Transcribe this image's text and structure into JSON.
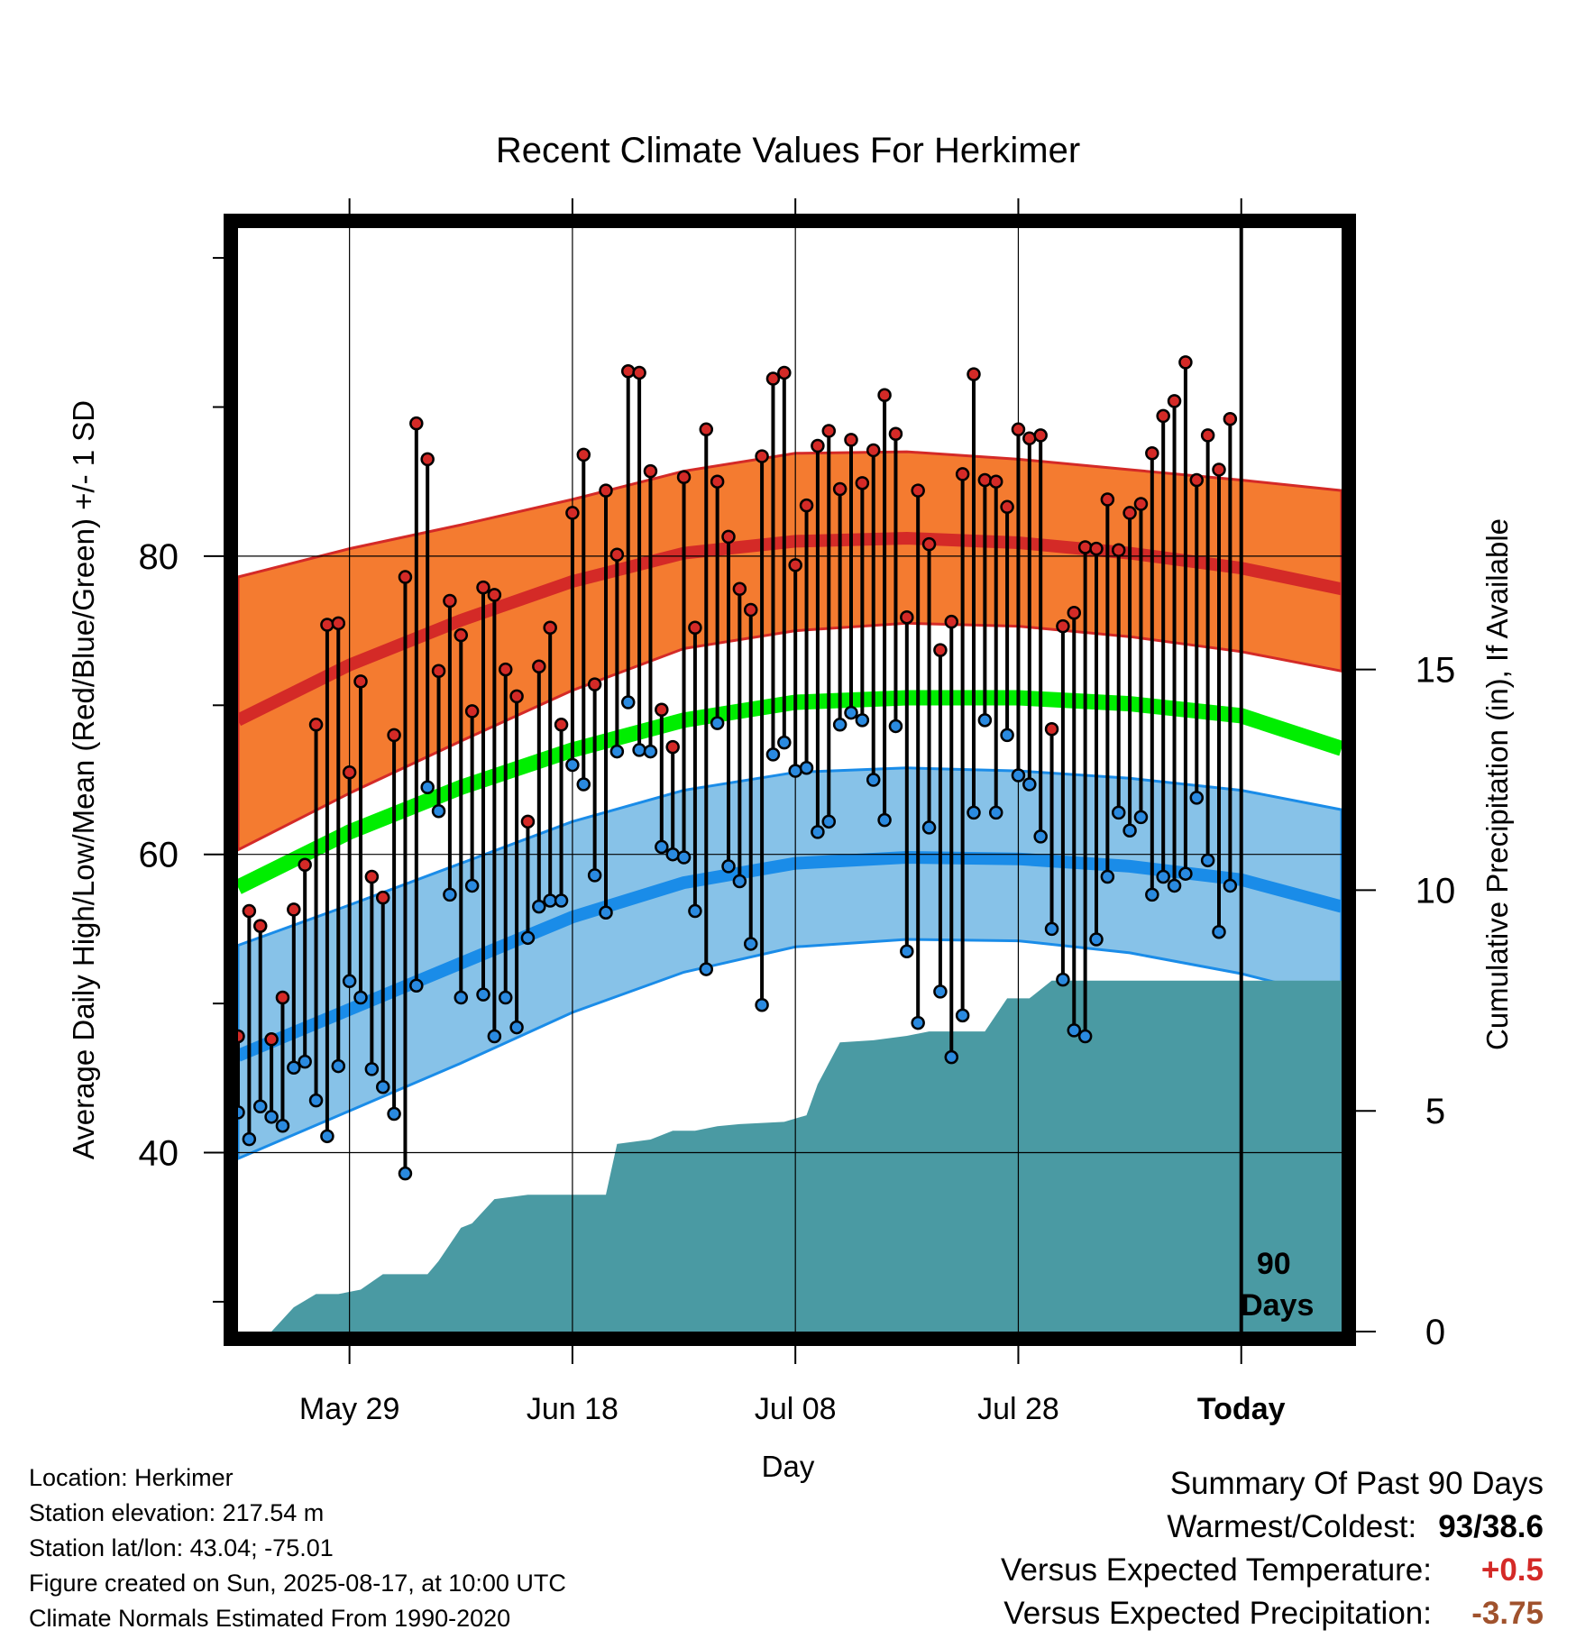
{
  "chart_data": {
    "type": "line",
    "title": "Recent Climate Values For Herkimer",
    "xlabel": "Day",
    "ylabel": "Average Daily High/Low/Mean (Red/Blue/Green) +/- 1 SD",
    "y2label": "Cumulative Precipitation (in), If Available",
    "ylim": [
      28,
      102
    ],
    "y2lim": [
      0,
      25
    ],
    "yticks": [
      40,
      60,
      80
    ],
    "y2ticks": [
      0,
      5,
      10,
      15
    ],
    "x_tick_labels": [
      "May 29",
      "Jun 18",
      "Jul 08",
      "Jul 28",
      "Today"
    ],
    "x_dates": [
      "2025-05-29",
      "2025-06-18",
      "2025-07-08",
      "2025-07-28",
      "2025-08-17"
    ],
    "x_range": [
      "2025-05-19",
      "2025-08-26"
    ],
    "window_marker": {
      "date": "2025-08-17",
      "label_line1": "90",
      "label_line2": "Days"
    },
    "grid": true,
    "colors": {
      "high_band": "#f47b30",
      "high_mean": "#d42a27",
      "low_band": "#87c2e8",
      "low_mean": "#1a8ce8",
      "mean": "#00ee00",
      "precip": "#4a9aa3",
      "high_dot": "#d42a27",
      "low_dot": "#2a8ae0"
    },
    "normals": {
      "dates": [
        "2025-05-19",
        "2025-05-29",
        "2025-06-08",
        "2025-06-18",
        "2025-06-28",
        "2025-07-08",
        "2025-07-18",
        "2025-07-28",
        "2025-08-07",
        "2025-08-17",
        "2025-08-26"
      ],
      "high_mean": [
        69.0,
        72.7,
        75.7,
        78.3,
        80.2,
        81.0,
        81.2,
        80.9,
        80.2,
        79.2,
        77.8
      ],
      "high_upper": [
        78.6,
        80.5,
        82.1,
        83.8,
        85.7,
        86.9,
        87.0,
        86.5,
        85.8,
        85.1,
        84.4
      ],
      "high_lower": [
        60.3,
        64.1,
        67.6,
        71.0,
        73.8,
        75.0,
        75.5,
        75.3,
        74.6,
        73.6,
        72.3
      ],
      "low_mean": [
        46.5,
        49.6,
        52.7,
        55.8,
        58.1,
        59.4,
        59.8,
        59.7,
        59.2,
        58.3,
        56.5
      ],
      "low_upper": [
        53.9,
        56.6,
        59.4,
        62.2,
        64.3,
        65.5,
        65.8,
        65.6,
        65.1,
        64.3,
        63.0
      ],
      "low_lower": [
        39.6,
        42.8,
        46.0,
        49.4,
        52.1,
        53.8,
        54.3,
        54.2,
        53.4,
        52.0,
        50.3
      ],
      "mean": [
        57.8,
        61.5,
        64.5,
        67.0,
        69.0,
        70.2,
        70.5,
        70.5,
        70.1,
        69.3,
        67.1
      ]
    },
    "observations": [
      {
        "date": "2025-05-19",
        "high": 47.8,
        "low": 42.7
      },
      {
        "date": "2025-05-20",
        "high": 56.2,
        "low": 40.9
      },
      {
        "date": "2025-05-21",
        "high": 55.2,
        "low": 43.1
      },
      {
        "date": "2025-05-22",
        "high": 47.6,
        "low": 42.4
      },
      {
        "date": "2025-05-23",
        "high": 50.4,
        "low": 41.8
      },
      {
        "date": "2025-05-24",
        "high": 56.3,
        "low": 45.7
      },
      {
        "date": "2025-05-25",
        "high": 59.3,
        "low": 46.1
      },
      {
        "date": "2025-05-26",
        "high": 68.7,
        "low": 43.5
      },
      {
        "date": "2025-05-27",
        "high": 75.4,
        "low": 41.1
      },
      {
        "date": "2025-05-28",
        "high": 75.5,
        "low": 45.8
      },
      {
        "date": "2025-05-29",
        "high": 65.5,
        "low": 51.5
      },
      {
        "date": "2025-05-30",
        "high": 71.6,
        "low": 50.4
      },
      {
        "date": "2025-05-31",
        "high": 58.5,
        "low": 45.6
      },
      {
        "date": "2025-06-01",
        "high": 57.1,
        "low": 44.4
      },
      {
        "date": "2025-06-02",
        "high": 68.0,
        "low": 42.6
      },
      {
        "date": "2025-06-03",
        "high": 78.6,
        "low": 38.6
      },
      {
        "date": "2025-06-04",
        "high": 88.9,
        "low": 51.2
      },
      {
        "date": "2025-06-05",
        "high": 86.5,
        "low": 64.5
      },
      {
        "date": "2025-06-06",
        "high": 72.3,
        "low": 62.9
      },
      {
        "date": "2025-06-07",
        "high": 77.0,
        "low": 57.3
      },
      {
        "date": "2025-06-08",
        "high": 74.7,
        "low": 50.4
      },
      {
        "date": "2025-06-09",
        "high": 69.6,
        "low": 57.9
      },
      {
        "date": "2025-06-10",
        "high": 77.9,
        "low": 50.6
      },
      {
        "date": "2025-06-11",
        "high": 77.4,
        "low": 47.8
      },
      {
        "date": "2025-06-12",
        "high": 72.4,
        "low": 50.4
      },
      {
        "date": "2025-06-13",
        "high": 70.6,
        "low": 48.4
      },
      {
        "date": "2025-06-14",
        "high": 62.2,
        "low": 54.4
      },
      {
        "date": "2025-06-15",
        "high": 72.6,
        "low": 56.5
      },
      {
        "date": "2025-06-16",
        "high": 75.2,
        "low": 56.9
      },
      {
        "date": "2025-06-17",
        "high": 68.7,
        "low": 56.9
      },
      {
        "date": "2025-06-18",
        "high": 82.9,
        "low": 66.0
      },
      {
        "date": "2025-06-19",
        "high": 86.8,
        "low": 64.7
      },
      {
        "date": "2025-06-20",
        "high": 71.4,
        "low": 58.6
      },
      {
        "date": "2025-06-21",
        "high": 84.4,
        "low": 56.1
      },
      {
        "date": "2025-06-22",
        "high": 80.1,
        "low": 66.9
      },
      {
        "date": "2025-06-23",
        "high": 92.4,
        "low": 70.2
      },
      {
        "date": "2025-06-24",
        "high": 92.3,
        "low": 67.0
      },
      {
        "date": "2025-06-25",
        "high": 85.7,
        "low": 66.9
      },
      {
        "date": "2025-06-26",
        "high": 69.7,
        "low": 60.5
      },
      {
        "date": "2025-06-27",
        "high": 67.2,
        "low": 60.0
      },
      {
        "date": "2025-06-28",
        "high": 85.3,
        "low": 59.8
      },
      {
        "date": "2025-06-29",
        "high": 75.2,
        "low": 56.2
      },
      {
        "date": "2025-06-30",
        "high": 88.5,
        "low": 52.3
      },
      {
        "date": "2025-07-01",
        "high": 85.0,
        "low": 68.8
      },
      {
        "date": "2025-07-02",
        "high": 81.3,
        "low": 59.2
      },
      {
        "date": "2025-07-03",
        "high": 77.8,
        "low": 58.2
      },
      {
        "date": "2025-07-04",
        "high": 76.4,
        "low": 54.0
      },
      {
        "date": "2025-07-05",
        "high": 86.7,
        "low": 49.9
      },
      {
        "date": "2025-07-06",
        "high": 91.9,
        "low": 66.7
      },
      {
        "date": "2025-07-07",
        "high": 92.3,
        "low": 67.5
      },
      {
        "date": "2025-07-08",
        "high": 79.4,
        "low": 65.6
      },
      {
        "date": "2025-07-09",
        "high": 83.4,
        "low": 65.8
      },
      {
        "date": "2025-07-10",
        "high": 87.4,
        "low": 61.5
      },
      {
        "date": "2025-07-11",
        "high": 88.4,
        "low": 62.2
      },
      {
        "date": "2025-07-12",
        "high": 84.5,
        "low": 68.7
      },
      {
        "date": "2025-07-13",
        "high": 87.8,
        "low": 69.5
      },
      {
        "date": "2025-07-14",
        "high": 84.9,
        "low": 69.0
      },
      {
        "date": "2025-07-15",
        "high": 87.1,
        "low": 65.0
      },
      {
        "date": "2025-07-16",
        "high": 90.8,
        "low": 62.3
      },
      {
        "date": "2025-07-17",
        "high": 88.2,
        "low": 68.6
      },
      {
        "date": "2025-07-18",
        "high": 75.9,
        "low": 53.5
      },
      {
        "date": "2025-07-19",
        "high": 84.4,
        "low": 48.7
      },
      {
        "date": "2025-07-20",
        "high": 80.8,
        "low": 61.8
      },
      {
        "date": "2025-07-21",
        "high": 73.7,
        "low": 50.8
      },
      {
        "date": "2025-07-22",
        "high": 75.6,
        "low": 46.4
      },
      {
        "date": "2025-07-23",
        "high": 85.5,
        "low": 49.2
      },
      {
        "date": "2025-07-24",
        "high": 92.2,
        "low": 62.8
      },
      {
        "date": "2025-07-25",
        "high": 85.1,
        "low": 69.0
      },
      {
        "date": "2025-07-26",
        "high": 85.0,
        "low": 62.8
      },
      {
        "date": "2025-07-27",
        "high": 83.3,
        "low": 68.0
      },
      {
        "date": "2025-07-28",
        "high": 88.5,
        "low": 65.3
      },
      {
        "date": "2025-07-29",
        "high": 87.9,
        "low": 64.7
      },
      {
        "date": "2025-07-30",
        "high": 88.1,
        "low": 61.2
      },
      {
        "date": "2025-07-31",
        "high": 68.4,
        "low": 55.0
      },
      {
        "date": "2025-08-01",
        "high": 75.3,
        "low": 51.6
      },
      {
        "date": "2025-08-02",
        "high": 76.2,
        "low": 48.2
      },
      {
        "date": "2025-08-03",
        "high": 80.6,
        "low": 47.8
      },
      {
        "date": "2025-08-04",
        "high": 80.5,
        "low": 54.3
      },
      {
        "date": "2025-08-05",
        "high": 83.8,
        "low": 58.5
      },
      {
        "date": "2025-08-06",
        "high": 80.4,
        "low": 62.8
      },
      {
        "date": "2025-08-07",
        "high": 82.9,
        "low": 61.6
      },
      {
        "date": "2025-08-08",
        "high": 83.5,
        "low": 62.5
      },
      {
        "date": "2025-08-09",
        "high": 86.9,
        "low": 57.3
      },
      {
        "date": "2025-08-10",
        "high": 89.4,
        "low": 58.5
      },
      {
        "date": "2025-08-11",
        "high": 90.4,
        "low": 57.9
      },
      {
        "date": "2025-08-12",
        "high": 93.0,
        "low": 58.7
      },
      {
        "date": "2025-08-13",
        "high": 85.1,
        "low": 63.8
      },
      {
        "date": "2025-08-14",
        "high": 88.1,
        "low": 59.6
      },
      {
        "date": "2025-08-15",
        "high": 85.8,
        "low": 54.8
      },
      {
        "date": "2025-08-16",
        "high": 89.2,
        "low": 57.9
      }
    ],
    "precipitation": {
      "dates": [
        "2025-05-19",
        "2025-05-22",
        "2025-05-24",
        "2025-05-26",
        "2025-05-28",
        "2025-05-30",
        "2025-06-01",
        "2025-06-03",
        "2025-06-05",
        "2025-06-06",
        "2025-06-08",
        "2025-06-09",
        "2025-06-11",
        "2025-06-14",
        "2025-06-16",
        "2025-06-21",
        "2025-06-22",
        "2025-06-25",
        "2025-06-27",
        "2025-06-29",
        "2025-07-01",
        "2025-07-03",
        "2025-07-07",
        "2025-07-09",
        "2025-07-10",
        "2025-07-12",
        "2025-07-15",
        "2025-07-18",
        "2025-07-20",
        "2025-07-25",
        "2025-07-27",
        "2025-07-29",
        "2025-07-31",
        "2025-08-16"
      ],
      "cumulative": [
        0.0,
        0.0,
        0.55,
        0.85,
        0.85,
        0.95,
        1.3,
        1.3,
        1.3,
        1.6,
        2.35,
        2.45,
        3.0,
        3.1,
        3.1,
        3.1,
        4.25,
        4.35,
        4.55,
        4.55,
        4.65,
        4.7,
        4.75,
        4.9,
        5.6,
        6.55,
        6.6,
        6.7,
        6.8,
        6.8,
        7.55,
        7.55,
        7.95,
        7.95
      ]
    }
  },
  "info": {
    "location": "Location: Herkimer",
    "elevation": "Station elevation: 217.54 m",
    "latlon": "Station lat/lon: 43.04; -75.01",
    "created": "Figure created on Sun, 2025-08-17, at 10:00 UTC",
    "normals": "Climate Normals Estimated From 1990-2020"
  },
  "summary": {
    "heading": "Summary Of Past 90 Days",
    "warmest_label": "Warmest/Coldest:",
    "warmest_value": "93/38.6",
    "temp_label": "Versus Expected Temperature:",
    "temp_value": "+0.5",
    "temp_color": "#d42a27",
    "precip_label": "Versus Expected Precipitation:",
    "precip_value": "-3.75",
    "precip_color": "#a0522d"
  }
}
